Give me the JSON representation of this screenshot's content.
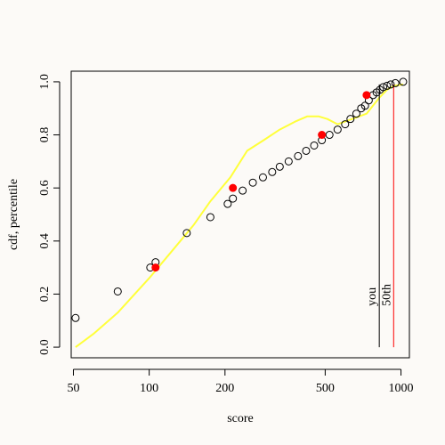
{
  "chart_data": {
    "type": "scatter",
    "title": "",
    "xlabel": "score",
    "ylabel": "cdf, percentile",
    "x_scale": "log",
    "xlim": [
      49,
      1080
    ],
    "ylim": [
      -0.04,
      1.04
    ],
    "x_ticks": [
      {
        "value": 50,
        "label": "50"
      },
      {
        "value": 100,
        "label": "100"
      },
      {
        "value": 200,
        "label": "200"
      },
      {
        "value": 500,
        "label": "500"
      },
      {
        "value": 1000,
        "label": "1000"
      }
    ],
    "y_ticks": [
      {
        "value": 0.0,
        "label": "0.0"
      },
      {
        "value": 0.2,
        "label": "0.2"
      },
      {
        "value": 0.4,
        "label": "0.4"
      },
      {
        "value": 0.6,
        "label": "0.6"
      },
      {
        "value": 0.8,
        "label": "0.8"
      },
      {
        "value": 1.0,
        "label": "1.0"
      }
    ],
    "grid": false,
    "open_points": [
      {
        "x": 51,
        "y": 0.11
      },
      {
        "x": 75,
        "y": 0.21
      },
      {
        "x": 101,
        "y": 0.3
      },
      {
        "x": 106,
        "y": 0.32
      },
      {
        "x": 141,
        "y": 0.43
      },
      {
        "x": 175,
        "y": 0.49
      },
      {
        "x": 205,
        "y": 0.54
      },
      {
        "x": 215,
        "y": 0.56
      },
      {
        "x": 235,
        "y": 0.59
      },
      {
        "x": 258,
        "y": 0.62
      },
      {
        "x": 283,
        "y": 0.64
      },
      {
        "x": 308,
        "y": 0.66
      },
      {
        "x": 330,
        "y": 0.68
      },
      {
        "x": 358,
        "y": 0.7
      },
      {
        "x": 390,
        "y": 0.72
      },
      {
        "x": 420,
        "y": 0.74
      },
      {
        "x": 452,
        "y": 0.76
      },
      {
        "x": 485,
        "y": 0.78
      },
      {
        "x": 520,
        "y": 0.8
      },
      {
        "x": 560,
        "y": 0.82
      },
      {
        "x": 600,
        "y": 0.84
      },
      {
        "x": 630,
        "y": 0.86
      },
      {
        "x": 665,
        "y": 0.88
      },
      {
        "x": 695,
        "y": 0.9
      },
      {
        "x": 720,
        "y": 0.91
      },
      {
        "x": 745,
        "y": 0.93
      },
      {
        "x": 775,
        "y": 0.95
      },
      {
        "x": 800,
        "y": 0.96
      },
      {
        "x": 825,
        "y": 0.97
      },
      {
        "x": 850,
        "y": 0.98
      },
      {
        "x": 880,
        "y": 0.985
      },
      {
        "x": 910,
        "y": 0.99
      },
      {
        "x": 950,
        "y": 0.995
      },
      {
        "x": 1020,
        "y": 1.0
      }
    ],
    "red_points": [
      {
        "x": 106,
        "y": 0.3
      },
      {
        "x": 215,
        "y": 0.6
      },
      {
        "x": 485,
        "y": 0.8
      },
      {
        "x": 730,
        "y": 0.95
      }
    ],
    "cdf_line": [
      {
        "x": 51,
        "y": 0.0
      },
      {
        "x": 60,
        "y": 0.05
      },
      {
        "x": 75,
        "y": 0.13
      },
      {
        "x": 100,
        "y": 0.26
      },
      {
        "x": 125,
        "y": 0.37
      },
      {
        "x": 150,
        "y": 0.46
      },
      {
        "x": 175,
        "y": 0.55
      },
      {
        "x": 210,
        "y": 0.64
      },
      {
        "x": 245,
        "y": 0.74
      },
      {
        "x": 285,
        "y": 0.78
      },
      {
        "x": 330,
        "y": 0.82
      },
      {
        "x": 380,
        "y": 0.85
      },
      {
        "x": 425,
        "y": 0.87
      },
      {
        "x": 470,
        "y": 0.87
      },
      {
        "x": 510,
        "y": 0.86
      },
      {
        "x": 560,
        "y": 0.84
      },
      {
        "x": 640,
        "y": 0.86
      },
      {
        "x": 730,
        "y": 0.88
      },
      {
        "x": 820,
        "y": 0.94
      },
      {
        "x": 880,
        "y": 0.97
      },
      {
        "x": 940,
        "y": 0.985
      },
      {
        "x": 1020,
        "y": 0.99
      }
    ],
    "vlines": [
      {
        "x": 820,
        "label": "you",
        "color": "#000000"
      },
      {
        "x": 935,
        "label": "50th",
        "color": "#ff0000"
      }
    ],
    "colors": {
      "open_points": "#000000",
      "red_points": "#ff0000",
      "cdf_line": "#ffff3a"
    }
  }
}
